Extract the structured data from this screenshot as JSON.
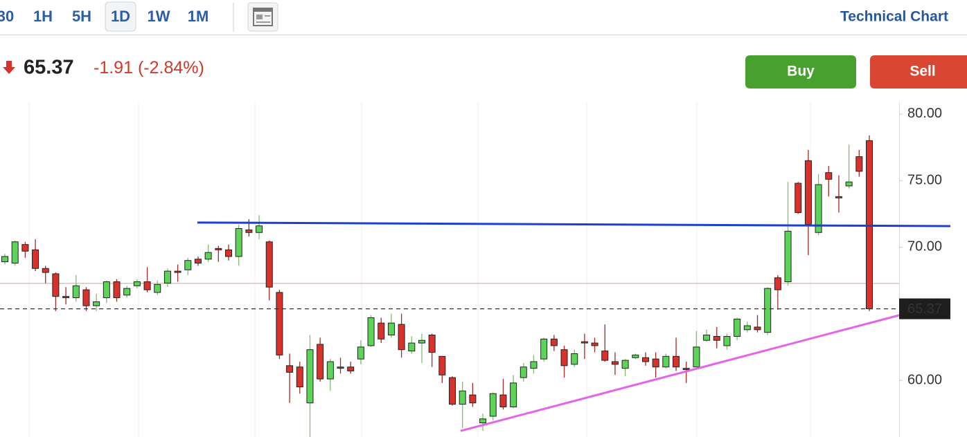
{
  "toolbar": {
    "ranges": [
      "30",
      "1H",
      "5H",
      "1D",
      "1W",
      "1M"
    ],
    "title": "Technical Chart"
  },
  "quote": {
    "price": 65.37,
    "change": -1.91,
    "change_percent": "(-2.84%)"
  },
  "buttons": [
    "Buy",
    "Sell"
  ],
  "chart_data": {
    "type": "candlestick",
    "up_color": "#5ed35a",
    "down_color": "#d9312b",
    "ylim": [
      55.74,
      80.88
    ],
    "yticks": [
      {
        "value": 60,
        "label": "60.00"
      },
      {
        "value": 70,
        "label": "70.00"
      },
      {
        "value": 75,
        "label": "75.00"
      },
      {
        "value": 80,
        "label": "80.00"
      }
    ],
    "open": [
      68.9,
      68.8,
      70.2,
      69.8,
      68.4,
      68.0,
      66.3,
      66.2,
      66.8,
      65.6,
      66.2,
      67.4,
      66.4,
      67.1,
      67.4,
      66.6,
      67.3,
      68.2,
      68.3,
      69.1,
      69.1,
      69.9,
      69.8,
      69.3,
      71.3,
      71.1,
      70.4,
      66.6,
      61.1,
      61.0,
      58.3,
      62.7,
      60.1,
      61.0,
      61.0,
      61.6,
      62.6,
      64.3,
      63.4,
      64.2,
      62.2,
      62.8,
      63.4,
      61.8,
      60.2,
      58.2,
      58.9,
      56.8,
      57.3,
      58.9,
      58.0,
      60.2,
      60.9,
      61.6,
      63.1,
      62.3,
      61.2,
      62.9,
      62.8,
      62.2,
      61.4,
      60.9,
      61.7,
      61.7,
      61.6,
      61.0,
      61.8,
      60.9,
      61.0,
      63.0,
      63.3,
      62.6,
      63.3,
      63.8,
      64.0,
      63.6,
      67.7,
      67.4,
      74.8,
      76.5,
      71.1,
      75.6,
      73.8,
      74.6,
      76.8,
      78.0
    ],
    "high": [
      69.5,
      70.5,
      70.4,
      70.6,
      68.6,
      68.1,
      67.0,
      67.9,
      67.0,
      66.5,
      67.5,
      67.6,
      67.1,
      67.6,
      68.5,
      67.5,
      68.4,
      68.7,
      69.2,
      69.3,
      70.2,
      70.1,
      70.2,
      71.7,
      72.1,
      72.4,
      70.5,
      66.8,
      62.0,
      61.4,
      63.4,
      63.2,
      61.6,
      61.7,
      61.4,
      63.0,
      64.9,
      64.7,
      65.0,
      65.0,
      63.3,
      63.5,
      63.5,
      61.8,
      60.3,
      59.9,
      59.8,
      57.5,
      59.1,
      60.1,
      60.4,
      61.3,
      61.9,
      63.2,
      63.4,
      62.6,
      62.3,
      63.5,
      63.2,
      64.2,
      62.1,
      61.6,
      62.0,
      62.1,
      62.1,
      62.0,
      63.2,
      61.4,
      63.7,
      63.8,
      64.0,
      63.5,
      64.7,
      64.4,
      64.9,
      67.0,
      67.9,
      74.9,
      74.9,
      77.3,
      75.5,
      76.1,
      75.4,
      77.7,
      77.3,
      78.4
    ],
    "low": [
      68.7,
      68.6,
      69.2,
      68.2,
      67.3,
      65.2,
      65.7,
      65.9,
      65.2,
      65.2,
      65.8,
      65.9,
      66.2,
      66.9,
      66.6,
      66.4,
      67.0,
      67.4,
      67.9,
      68.6,
      68.9,
      68.9,
      69.0,
      68.6,
      70.8,
      70.6,
      66.0,
      61.6,
      58.3,
      59.0,
      55.2,
      59.9,
      59.2,
      60.5,
      60.5,
      61.2,
      62.5,
      62.8,
      63.2,
      61.7,
      62.0,
      61.3,
      61.0,
      59.8,
      58.1,
      56.4,
      58.0,
      56.2,
      57.0,
      57.8,
      57.9,
      59.9,
      60.5,
      61.4,
      62.2,
      60.2,
      61.0,
      61.6,
      62.1,
      61.4,
      60.4,
      60.3,
      61.6,
      61.1,
      60.2,
      60.9,
      60.7,
      59.8,
      61.0,
      62.9,
      62.4,
      62.3,
      63.0,
      63.6,
      63.6,
      63.4,
      65.3,
      67.1,
      72.5,
      69.4,
      70.9,
      73.8,
      72.6,
      74.4,
      75.3,
      65.2
    ],
    "close": [
      69.3,
      70.4,
      69.7,
      68.4,
      68.1,
      66.3,
      66.2,
      67.1,
      65.6,
      65.9,
      67.4,
      66.2,
      66.9,
      67.4,
      66.8,
      67.2,
      68.2,
      68.1,
      69.0,
      68.8,
      69.6,
      69.8,
      69.3,
      71.4,
      71.1,
      71.6,
      67.0,
      61.9,
      60.6,
      59.5,
      62.3,
      60.1,
      61.4,
      60.9,
      60.7,
      62.5,
      64.7,
      63.1,
      64.3,
      62.3,
      62.8,
      63.0,
      62.1,
      60.4,
      58.2,
      59.2,
      58.3,
      57.1,
      59.0,
      58.0,
      59.8,
      61.0,
      61.4,
      63.1,
      62.6,
      61.1,
      62.0,
      62.8,
      62.6,
      61.5,
      61.2,
      61.5,
      61.9,
      61.4,
      61.0,
      61.8,
      61.0,
      60.8,
      62.5,
      63.4,
      63.0,
      63.3,
      64.6,
      64.1,
      63.8,
      66.9,
      66.8,
      71.2,
      72.6,
      71.7,
      74.7,
      75.1,
      73.7,
      74.9,
      75.7,
      65.37
    ],
    "lines": [
      {
        "color": "#1c3fd6",
        "values": [
          71.85,
          71.58
        ]
      },
      {
        "color": "#e463e8",
        "values": [
          56.2,
          65.9
        ]
      }
    ]
  }
}
